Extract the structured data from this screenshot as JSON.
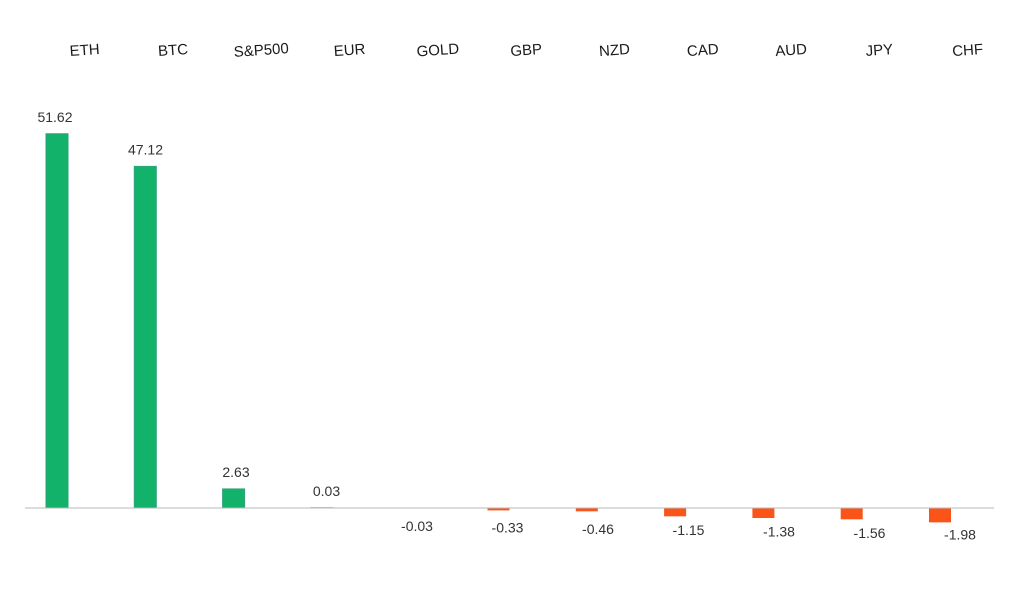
{
  "chart_data": {
    "type": "bar",
    "categories": [
      "ETH",
      "BTC",
      "S&P500",
      "EUR",
      "GOLD",
      "GBP",
      "NZD",
      "CAD",
      "AUD",
      "JPY",
      "CHF"
    ],
    "values": [
      51.62,
      47.12,
      2.63,
      0.03,
      -0.03,
      -0.33,
      -0.46,
      -1.15,
      -1.38,
      -1.56,
      -1.98
    ],
    "value_labels": [
      "51.62",
      "47.12",
      "2.63",
      "0.03",
      "-0.03",
      "-0.33",
      "-0.46",
      "-1.15",
      "-1.38",
      "-1.56",
      "-1.98"
    ],
    "ylim": [
      -2.6,
      52
    ],
    "category_labels_position": "top",
    "grid": false,
    "legend": "none",
    "colors": {
      "positive": "#12b26b",
      "positive_edge": "#2ea37a",
      "negative": "#fb5419",
      "axis": "#b8b8b8"
    }
  }
}
